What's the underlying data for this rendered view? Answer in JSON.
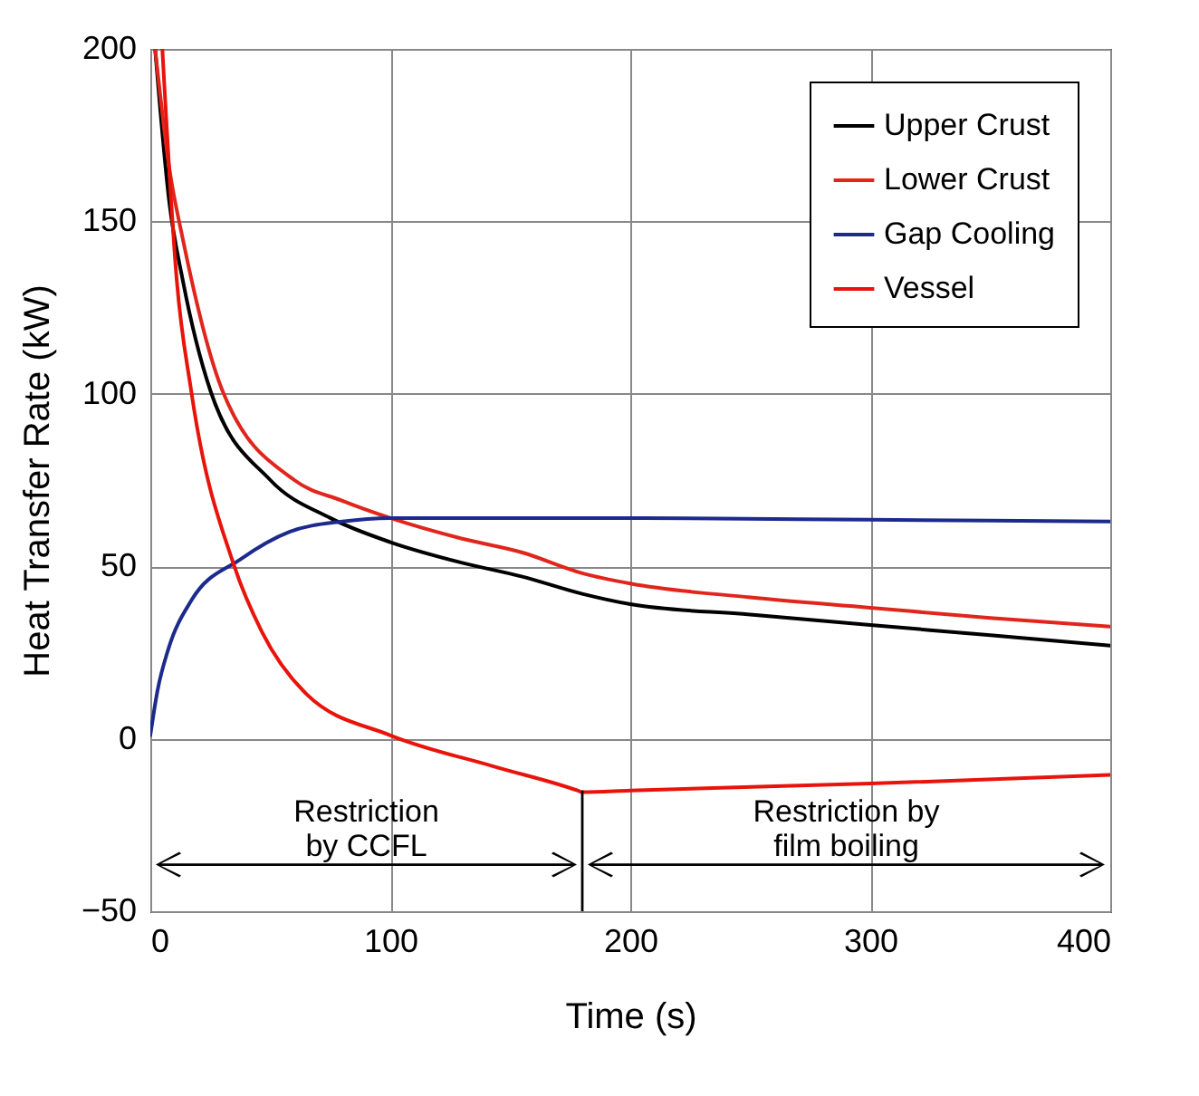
{
  "chart_data": {
    "type": "line",
    "xlabel": "Time (s)",
    "ylabel": "Heat Transfer Rate (kW)",
    "xlim": [
      0,
      400
    ],
    "xticks": [
      0,
      100,
      200,
      300,
      400
    ],
    "ylim": [
      -50,
      200
    ],
    "yticks": [
      -50,
      0,
      50,
      100,
      150,
      200
    ],
    "grid": true,
    "legend": "top right",
    "line_style": "solid",
    "marker": "none",
    "series": [
      {
        "name": "Upper Crust",
        "color": "#000000",
        "x": [
          2,
          8,
          13.5,
          25,
          50,
          75,
          100,
          130,
          155,
          180,
          200,
          250,
          300,
          350,
          400
        ],
        "values": [
          200,
          155,
          133,
          101,
          75,
          64,
          57,
          51,
          47,
          42,
          39,
          36,
          33,
          30,
          27
        ]
      },
      {
        "name": "Lower Crust",
        "color": "#e0261c",
        "x": [
          2,
          8,
          13.5,
          30,
          60,
          80,
          100,
          130,
          155,
          180,
          200,
          250,
          300,
          350,
          400
        ],
        "values": [
          200,
          165,
          145,
          101,
          75,
          69,
          64,
          58,
          54,
          48,
          45,
          41,
          38,
          35,
          32.5
        ]
      },
      {
        "name": "Gap Cooling",
        "color": "#1c2a8c",
        "x": [
          0,
          3,
          7.5,
          17,
          37.5,
          58,
          80,
          100,
          150,
          200,
          300,
          400
        ],
        "values": [
          1,
          14,
          26,
          40,
          52,
          60,
          63,
          64,
          64,
          64,
          63.5,
          63
        ]
      },
      {
        "name": "Vessel",
        "color": "#e8140c",
        "x": [
          5,
          11,
          17,
          35,
          46.5,
          65,
          100,
          143,
          178,
          180,
          200,
          300,
          400
        ],
        "values": [
          200,
          133,
          101,
          50,
          31,
          13,
          1,
          -8,
          -15,
          -15.5,
          -15,
          -13,
          -10.5
        ]
      }
    ],
    "annotations": [
      "Restriction\nby CCFL",
      "Restriction by\nfilm boiling"
    ]
  }
}
